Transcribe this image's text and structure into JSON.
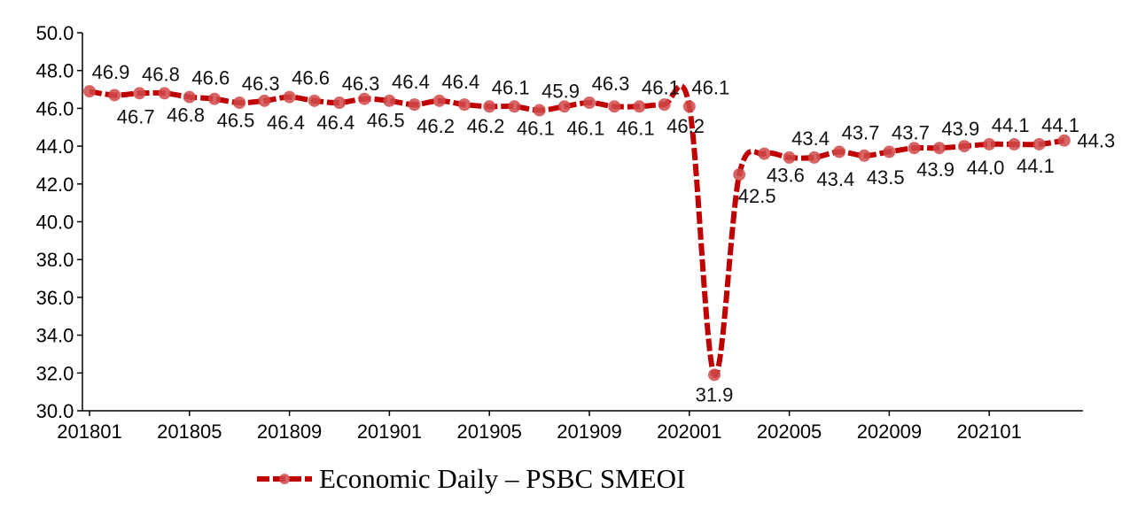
{
  "chart_data": {
    "type": "line",
    "title": "",
    "xlabel": "",
    "ylabel": "",
    "ylim": [
      30,
      50
    ],
    "ytick_step": 2,
    "yticks": [
      "30.0",
      "32.0",
      "34.0",
      "36.0",
      "38.0",
      "40.0",
      "42.0",
      "44.0",
      "46.0",
      "48.0",
      "50.0"
    ],
    "xtick_labels": [
      "201801",
      "201805",
      "201809",
      "201901",
      "201905",
      "201909",
      "202001",
      "202005",
      "202009",
      "202101"
    ],
    "x": [
      "201801",
      "201802",
      "201803",
      "201804",
      "201805",
      "201806",
      "201807",
      "201808",
      "201809",
      "201810",
      "201811",
      "201812",
      "201901",
      "201902",
      "201903",
      "201904",
      "201905",
      "201906",
      "201907",
      "201908",
      "201909",
      "201910",
      "201911",
      "201912",
      "202001",
      "202002",
      "202003",
      "202004",
      "202005",
      "202006",
      "202007",
      "202008",
      "202009",
      "202010",
      "202011",
      "202012",
      "202101",
      "202102",
      "202103",
      "202104"
    ],
    "series": [
      {
        "name": "Economic Daily – PSBC SMEOI",
        "color": "#C00000",
        "marker_color": "#D04A4A",
        "values": [
          46.9,
          46.7,
          46.8,
          46.8,
          46.6,
          46.5,
          46.3,
          46.4,
          46.6,
          46.4,
          46.3,
          46.5,
          46.4,
          46.2,
          46.4,
          46.2,
          46.1,
          46.1,
          45.9,
          46.1,
          46.3,
          46.1,
          46.1,
          46.2,
          46.1,
          31.9,
          42.5,
          43.6,
          43.4,
          43.4,
          43.7,
          43.5,
          43.7,
          43.9,
          43.9,
          44.0,
          44.1,
          44.1,
          44.1,
          44.3
        ]
      }
    ],
    "data_labels_shown": true,
    "grid": false,
    "legend_position": "bottom"
  }
}
